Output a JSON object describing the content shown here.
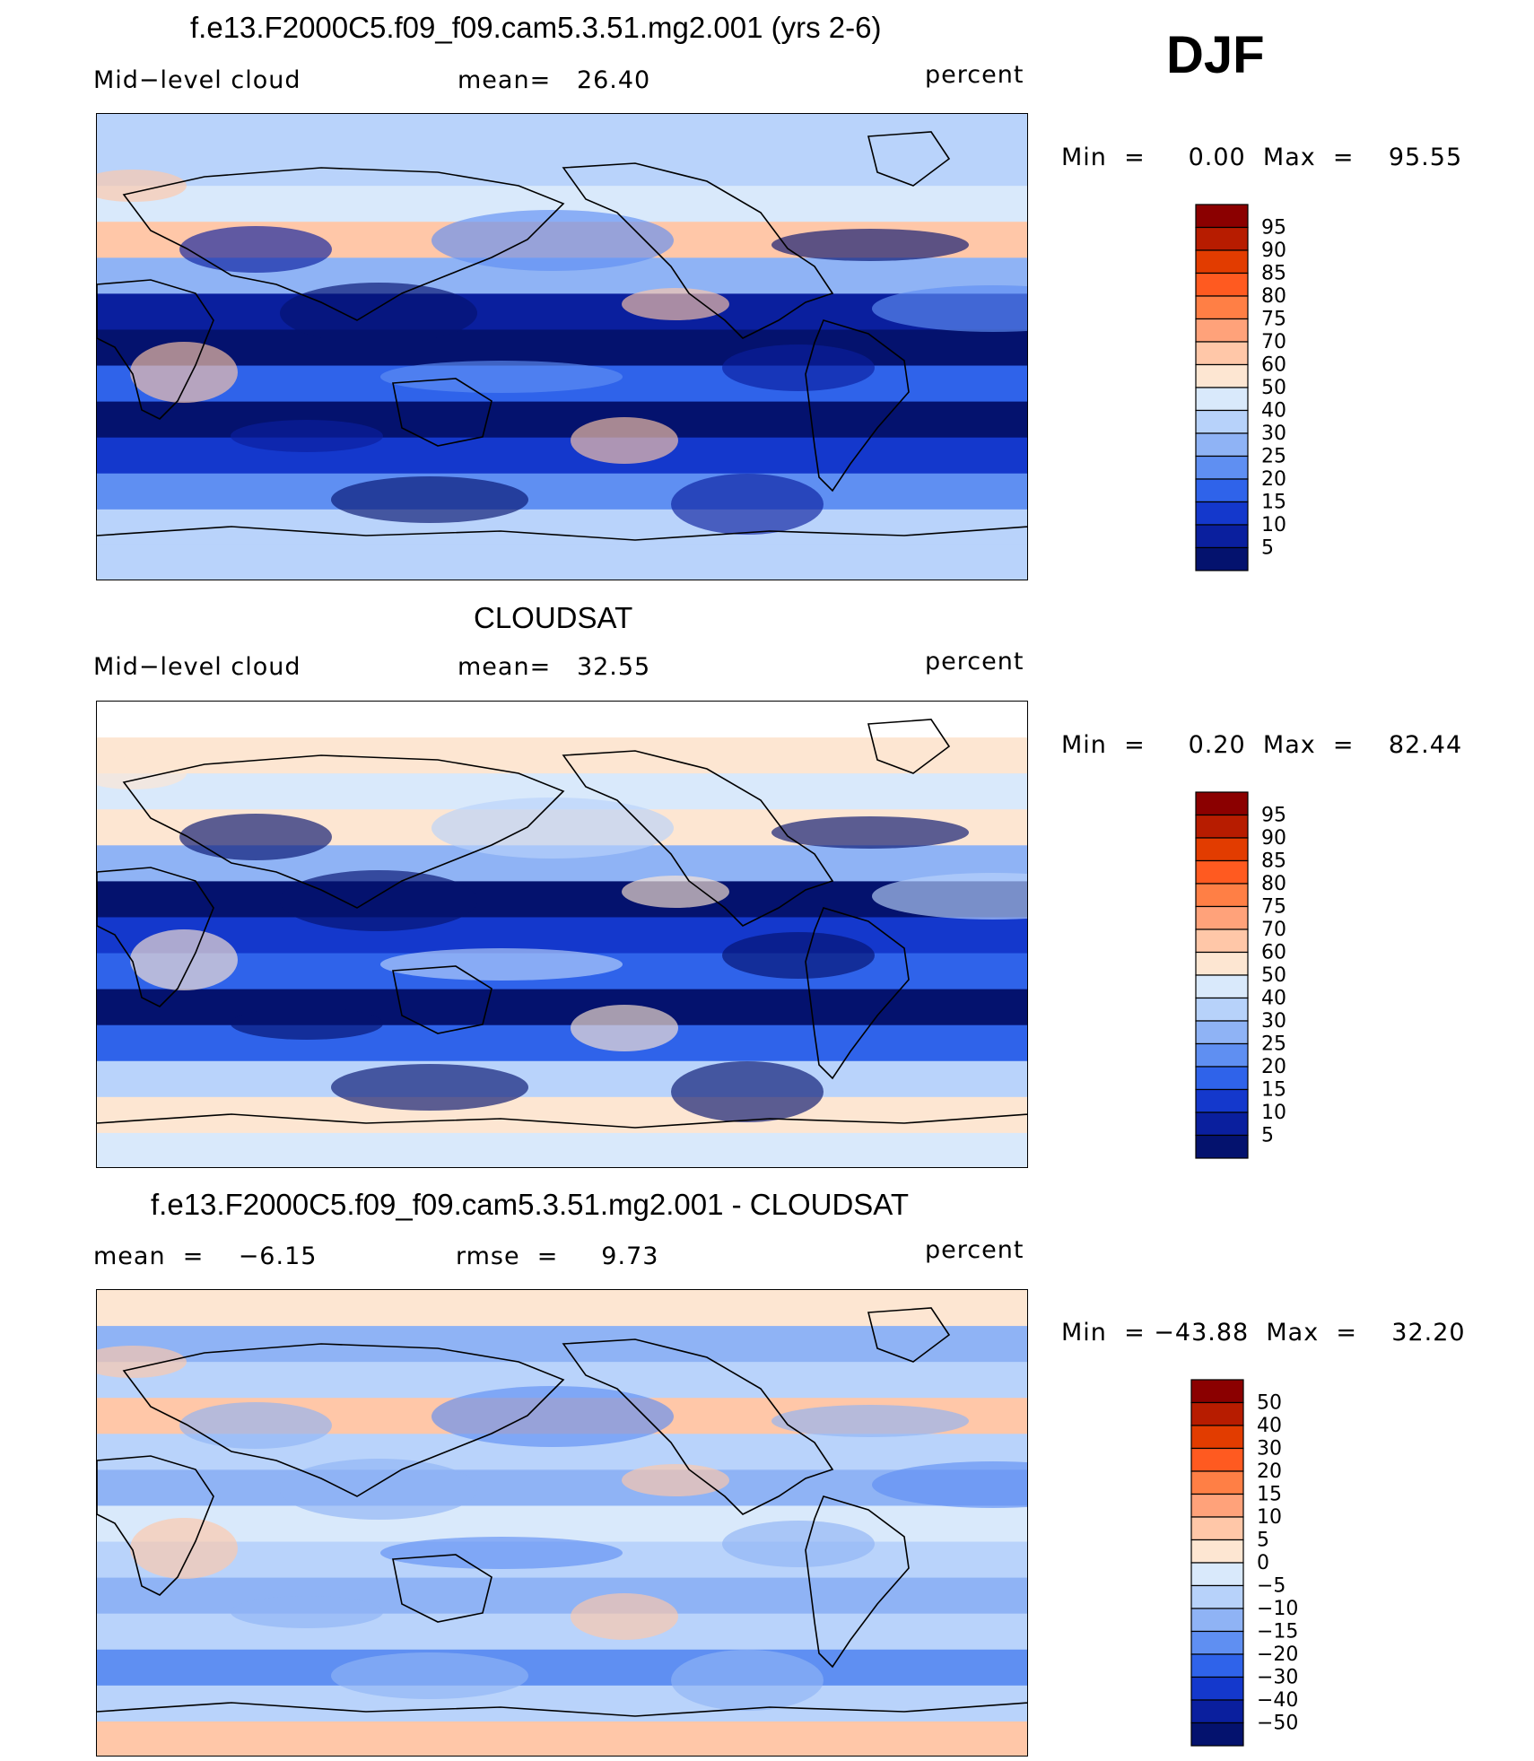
{
  "season": "DJF",
  "panels": [
    {
      "id": "model",
      "title": "f.e13.F2000C5.f09_f09.cam5.3.51.mg2.001 (yrs 2-6)",
      "left_label": "Mid−level cloud",
      "center_label": "mean=   26.40",
      "right_label": "percent",
      "stats": "Min  =     0.00  Max  =    95.55",
      "colorbar": {
        "labels": [
          "95",
          "90",
          "85",
          "80",
          "75",
          "70",
          "60",
          "50",
          "40",
          "30",
          "25",
          "20",
          "15",
          "10",
          "5"
        ],
        "colors": [
          "#8b0000",
          "#b71c00",
          "#e23c00",
          "#ff5a20",
          "#ff7f45",
          "#ffa27a",
          "#ffc7a8",
          "#fde6d2",
          "#d9e9fb",
          "#b7d2fa",
          "#8fb3f5",
          "#5f8ff2",
          "#2f63ea",
          "#1438cc",
          "#0a1f9e",
          "#04126e"
        ]
      },
      "map_bands": [
        "#b9d3fb",
        "#b9d3fb",
        "#d9e9fb",
        "#ffc7a8",
        "#8fb3f5",
        "#0a1f9e",
        "#04126e",
        "#2f63ea",
        "#04126e",
        "#1438cc",
        "#5f8ff2",
        "#b9d3fb",
        "#b9d3fb"
      ]
    },
    {
      "id": "obs",
      "title": "CLOUDSAT",
      "left_label": "Mid−level cloud",
      "center_label": "mean=   32.55",
      "right_label": "percent",
      "stats": "Min  =     0.20  Max  =    82.44",
      "colorbar": {
        "labels": [
          "95",
          "90",
          "85",
          "80",
          "75",
          "70",
          "60",
          "50",
          "40",
          "30",
          "25",
          "20",
          "15",
          "10",
          "5"
        ],
        "colors": [
          "#8b0000",
          "#b71c00",
          "#e23c00",
          "#ff5a20",
          "#ff7f45",
          "#ffa27a",
          "#ffc7a8",
          "#fde6d2",
          "#d9e9fb",
          "#b7d2fa",
          "#8fb3f5",
          "#5f8ff2",
          "#2f63ea",
          "#1438cc",
          "#0a1f9e",
          "#04126e"
        ]
      },
      "map_bands": [
        "#ffffff",
        "#fde6d2",
        "#d9e9fb",
        "#fde6d2",
        "#8fb3f5",
        "#04126e",
        "#1438cc",
        "#2f63ea",
        "#04126e",
        "#2f63ea",
        "#b9d3fb",
        "#fde6d2",
        "#d9e9fb"
      ]
    },
    {
      "id": "diff",
      "title": "f.e13.F2000C5.f09_f09.cam5.3.51.mg2.001 - CLOUDSAT",
      "left_label": "mean  =    −6.15",
      "center_label": "rmse  =     9.73",
      "right_label": "percent",
      "stats": "Min  = −43.88  Max  =    32.20",
      "colorbar": {
        "labels": [
          "50",
          "40",
          "30",
          "20",
          "15",
          "10",
          "5",
          "0",
          "−5",
          "−10",
          "−15",
          "−20",
          "−30",
          "−40",
          "−50"
        ],
        "colors": [
          "#8b0000",
          "#b71c00",
          "#e23c00",
          "#ff5a20",
          "#ff7f45",
          "#ffa27a",
          "#ffc7a8",
          "#fde6d2",
          "#d9e9fb",
          "#b7d2fa",
          "#8fb3f5",
          "#5f8ff2",
          "#2f63ea",
          "#1438cc",
          "#0a1f9e",
          "#04126e"
        ]
      },
      "map_bands": [
        "#fde6d2",
        "#8fb3f5",
        "#b9d3fb",
        "#ffc7a8",
        "#b9d3fb",
        "#8fb3f5",
        "#d9e9fb",
        "#b9d3fb",
        "#8fb3f5",
        "#b9d3fb",
        "#5f8ff2",
        "#b9d3fb",
        "#ffc7a8"
      ]
    }
  ]
}
